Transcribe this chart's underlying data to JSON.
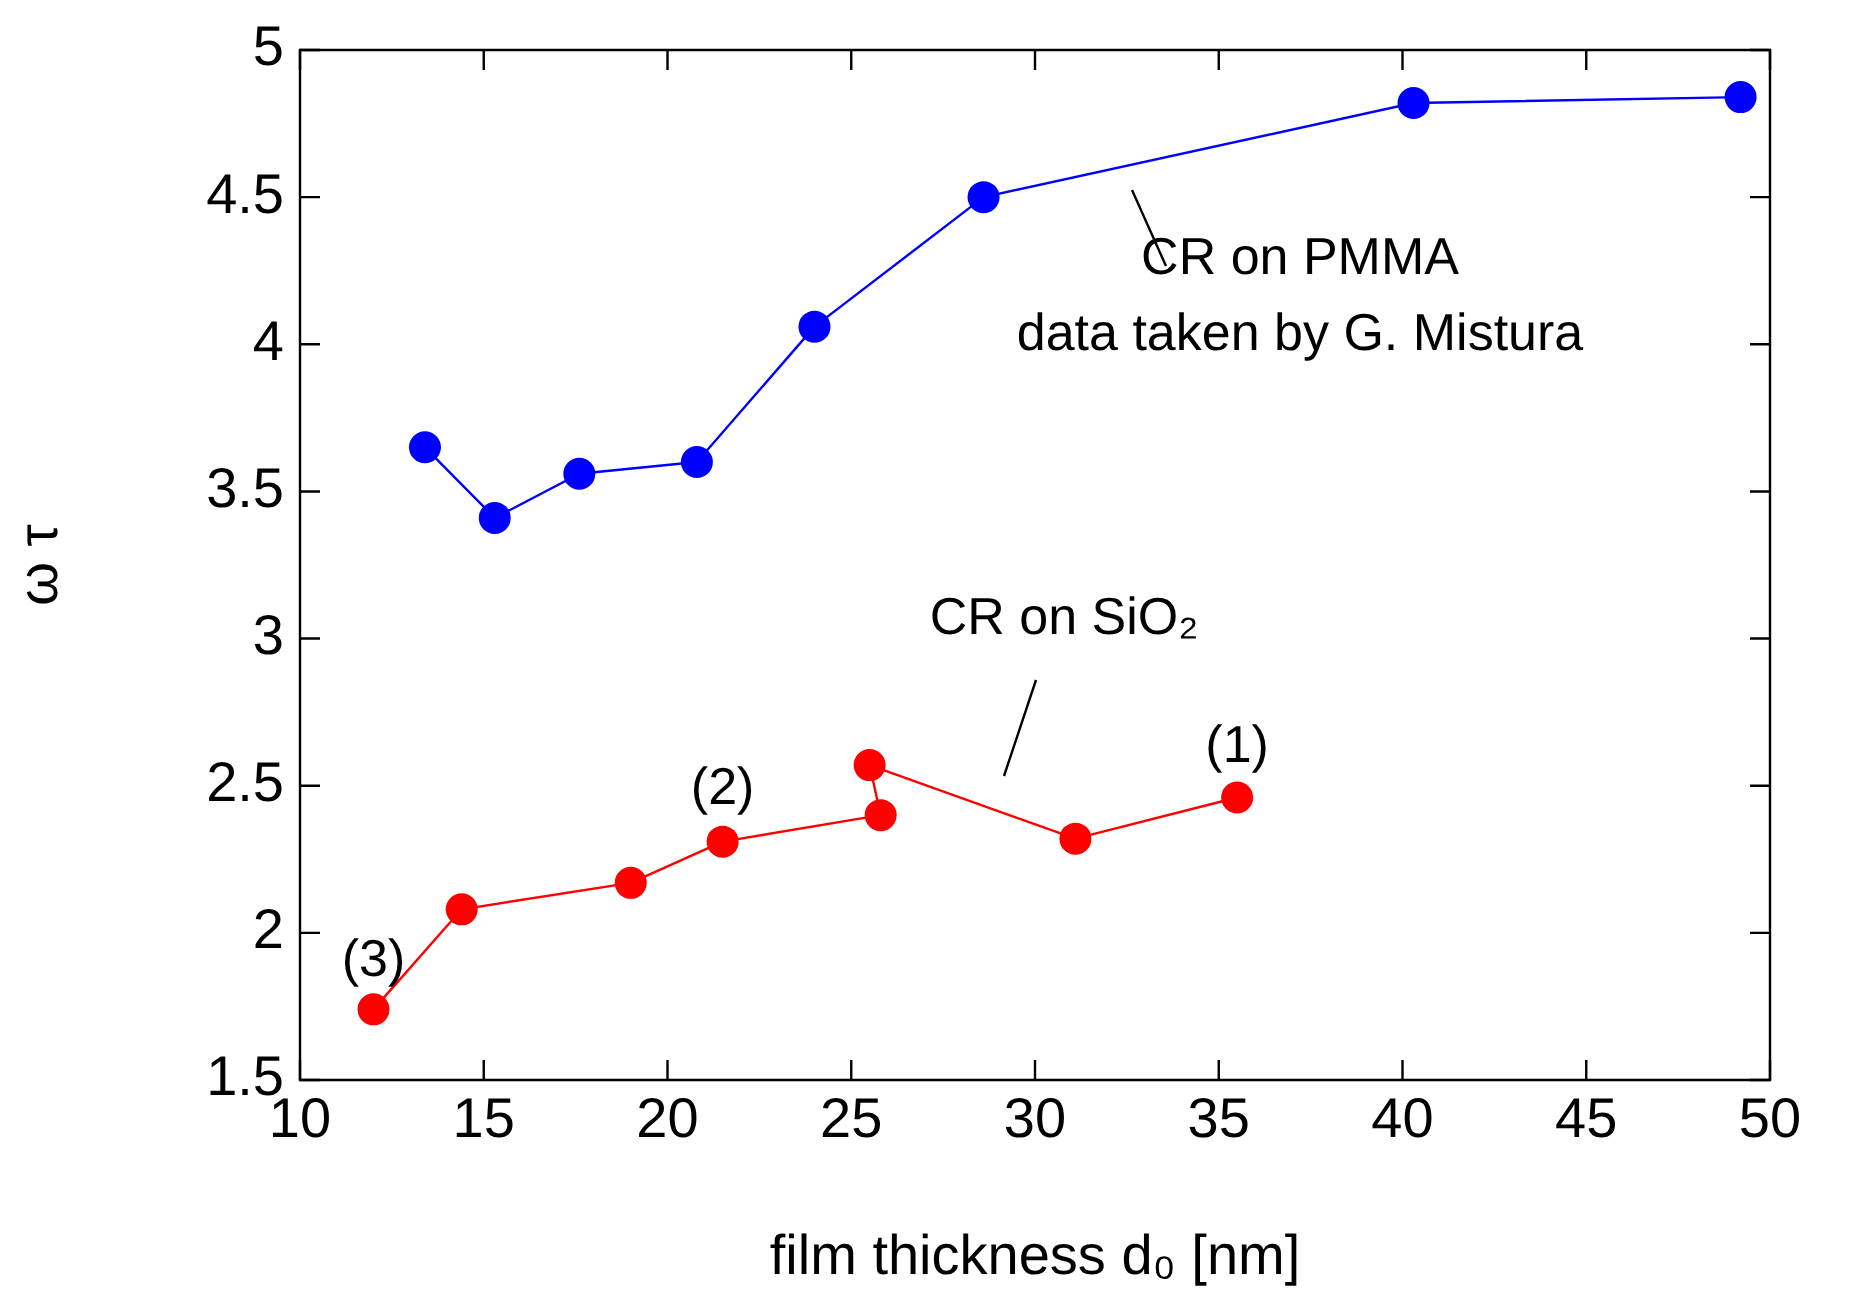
{
  "chart_data": {
    "type": "line",
    "xlabel": "film thickness d₀ [nm]",
    "ylabel": "ω τ",
    "xlim": [
      10,
      50
    ],
    "xticks": [
      10,
      15,
      20,
      25,
      30,
      35,
      40,
      45,
      50
    ],
    "ylim": [
      1.5,
      5
    ],
    "yticks": [
      1.5,
      2,
      2.5,
      3,
      3.5,
      4,
      4.5,
      5
    ],
    "grid": false,
    "legend": false,
    "marker": "circle",
    "line_style": "solid",
    "series": [
      {
        "color": "#0000ff",
        "x": [
          13.4,
          15.3,
          17.6,
          20.8,
          24.0,
          28.6,
          40.3,
          49.2
        ],
        "values": [
          3.65,
          3.41,
          3.56,
          3.6,
          4.06,
          4.5,
          4.82,
          4.84
        ]
      },
      {
        "color": "#ff0000",
        "x": [
          12.0,
          14.4,
          19.0,
          21.5,
          25.8,
          25.5,
          31.1,
          35.5
        ],
        "values": [
          1.74,
          2.08,
          2.17,
          2.31,
          2.4,
          2.57,
          2.32,
          2.46
        ]
      }
    ],
    "annotations": [
      "CR on PMMA\ndata taken by G. Mistura",
      "CR on SiO₂",
      {
        "text": "(1)",
        "x": 35.5,
        "y": 2.46
      },
      {
        "text": "(2)",
        "x": 21.5,
        "y": 2.31
      },
      {
        "text": "(3)",
        "x": 12.0,
        "y": 1.74
      }
    ]
  }
}
